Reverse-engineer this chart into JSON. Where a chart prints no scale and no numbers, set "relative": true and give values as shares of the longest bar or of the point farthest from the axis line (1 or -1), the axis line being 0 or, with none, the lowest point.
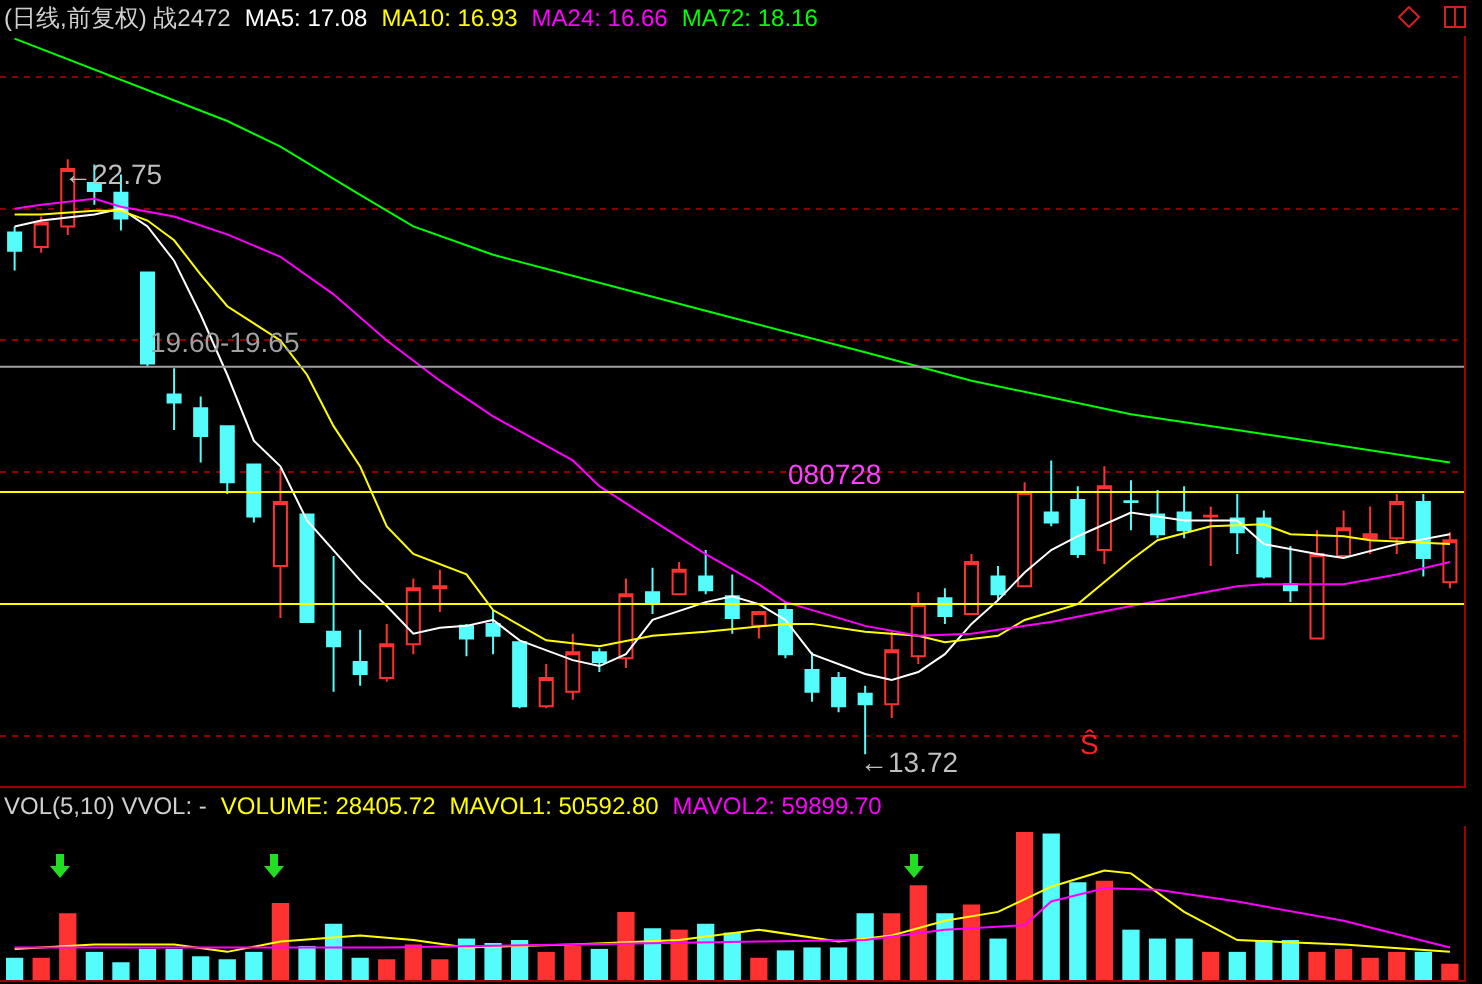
{
  "chart_data": [
    {
      "type": "candlestick",
      "title": "(日线,前复权) 战2472",
      "categories": [
        null,
        null,
        null,
        null,
        null,
        null,
        null,
        null,
        null,
        null,
        null,
        null,
        null,
        null,
        null,
        null,
        null,
        null,
        null,
        null,
        null,
        null,
        null,
        null,
        null,
        null,
        null,
        null,
        null,
        null,
        null,
        null,
        null,
        null,
        null,
        null,
        null,
        null,
        null,
        null,
        null,
        null,
        null,
        null,
        null,
        null,
        null,
        null,
        null,
        null,
        null,
        null,
        null,
        null,
        null
      ],
      "ylim": [
        13.24,
        24.62
      ],
      "yticks": [
        {
          "value": 14,
          "label": null
        },
        {
          "value": 16,
          "label": null
        },
        {
          "value": 18,
          "label": null
        },
        {
          "value": 20,
          "label": null
        },
        {
          "value": 22,
          "label": null
        },
        {
          "value": 24,
          "label": null
        }
      ],
      "grid": "y",
      "ohlc": [
        [
          21.64,
          21.73,
          21.06,
          21.36
        ],
        [
          21.42,
          21.88,
          21.33,
          21.79
        ],
        [
          21.73,
          22.75,
          21.6,
          22.6
        ],
        [
          22.39,
          22.67,
          22.06,
          22.27
        ],
        [
          22.24,
          22.52,
          21.67,
          21.85
        ],
        [
          21.03,
          21.03,
          19.6,
          19.65
        ],
        [
          19.18,
          19.58,
          18.64,
          19.06
        ],
        [
          18.97,
          19.15,
          18.15,
          18.55
        ],
        [
          18.7,
          18.7,
          17.67,
          17.85
        ],
        [
          18.12,
          18.12,
          17.24,
          17.33
        ],
        [
          16.58,
          18.06,
          15.79,
          17.55
        ],
        [
          17.36,
          17.36,
          15.73,
          15.73
        ],
        [
          15.58,
          16.73,
          14.67,
          15.36
        ],
        [
          15.12,
          15.61,
          14.76,
          14.94
        ],
        [
          14.88,
          15.7,
          14.82,
          15.39
        ],
        [
          15.39,
          16.39,
          15.24,
          16.24
        ],
        [
          16.24,
          16.52,
          15.88,
          16.27
        ],
        [
          15.67,
          15.7,
          15.21,
          15.48
        ],
        [
          15.7,
          15.91,
          15.24,
          15.52
        ],
        [
          15.42,
          15.42,
          14.42,
          14.45
        ],
        [
          14.45,
          15.09,
          14.42,
          14.88
        ],
        [
          14.67,
          15.55,
          14.55,
          15.27
        ],
        [
          15.27,
          15.33,
          14.97,
          15.12
        ],
        [
          15.18,
          16.39,
          15.03,
          16.15
        ],
        [
          16.18,
          16.55,
          15.85,
          16.0
        ],
        [
          16.15,
          16.64,
          16.15,
          16.52
        ],
        [
          16.42,
          16.82,
          16.15,
          16.21
        ],
        [
          16.12,
          16.45,
          15.55,
          15.79
        ],
        [
          15.67,
          15.9,
          15.48,
          15.88
        ],
        [
          15.91,
          16.03,
          15.18,
          15.24
        ],
        [
          15.0,
          15.27,
          14.52,
          14.67
        ],
        [
          14.88,
          14.97,
          14.36,
          14.45
        ],
        [
          14.64,
          14.76,
          13.72,
          14.48
        ],
        [
          14.48,
          15.58,
          14.27,
          15.3
        ],
        [
          15.21,
          16.18,
          15.09,
          16.0
        ],
        [
          16.09,
          16.24,
          15.7,
          15.82
        ],
        [
          15.85,
          16.76,
          15.85,
          16.64
        ],
        [
          16.42,
          16.58,
          16.06,
          16.15
        ],
        [
          16.27,
          17.85,
          16.27,
          17.7
        ],
        [
          17.39,
          18.18,
          17.18,
          17.24
        ],
        [
          17.58,
          17.79,
          16.7,
          16.76
        ],
        [
          16.82,
          18.09,
          16.61,
          17.79
        ],
        [
          17.56,
          17.88,
          17.12,
          17.55
        ],
        [
          17.36,
          17.73,
          17.0,
          17.06
        ],
        [
          17.39,
          17.79,
          17.0,
          17.12
        ],
        [
          17.33,
          17.48,
          16.58,
          17.34
        ],
        [
          17.3,
          17.67,
          16.76,
          17.09
        ],
        [
          17.3,
          17.42,
          16.39,
          16.42
        ],
        [
          16.3,
          16.88,
          16.03,
          16.21
        ],
        [
          15.48,
          17.12,
          15.48,
          16.76
        ],
        [
          16.73,
          17.42,
          16.73,
          17.15
        ],
        [
          17.0,
          17.48,
          16.76,
          17.06
        ],
        [
          17.0,
          17.67,
          16.76,
          17.55
        ],
        [
          17.55,
          17.67,
          16.42,
          16.7
        ],
        [
          16.33,
          17.09,
          16.24,
          16.97
        ]
      ],
      "series": [
        {
          "name": "MA5: 17.08",
          "type": "line",
          "color": "#ffffff",
          "values": [
            21.73,
            21.82,
            null,
            21.91,
            22.0,
            21.73,
            21.21,
            20.39,
            19.48,
            18.48,
            18.09,
            17.27,
            null,
            16.36,
            15.97,
            15.55,
            15.64,
            15.67,
            15.76,
            15.45,
            null,
            15.15,
            15.06,
            15.24,
            15.76,
            null,
            16.03,
            16.12,
            16.0,
            15.76,
            15.24,
            null,
            14.94,
            14.85,
            14.97,
            15.24,
            15.7,
            16.06,
            16.48,
            16.82,
            17.03,
            null,
            17.39,
            null,
            17.27,
            null,
            17.27,
            16.91,
            null,
            16.76,
            16.7,
            null,
            16.91,
            null,
            17.06
          ]
        },
        {
          "name": "MA10: 16.93",
          "type": "line",
          "color": "#ffff00",
          "values": [
            21.91,
            21.91,
            null,
            21.97,
            21.97,
            21.82,
            21.52,
            21.0,
            20.52,
            null,
            20.0,
            19.48,
            18.7,
            18.09,
            17.18,
            16.76,
            null,
            16.45,
            15.91,
            null,
            15.45,
            null,
            15.36,
            null,
            15.52,
            null,
            15.58,
            null,
            null,
            15.7,
            15.7,
            null,
            15.58,
            null,
            15.52,
            15.42,
            null,
            15.52,
            15.76,
            null,
            16.0,
            null,
            16.67,
            16.97,
            null,
            17.18,
            null,
            17.21,
            17.06,
            null,
            17.03,
            16.97,
            null,
            null,
            16.91
          ]
        },
        {
          "name": "MA24: 16.66",
          "type": "line",
          "color": "#ff00ff",
          "values": [
            22.0,
            22.06,
            null,
            22.15,
            22.03,
            null,
            21.88,
            null,
            21.61,
            null,
            21.27,
            null,
            20.7,
            null,
            20.0,
            null,
            19.39,
            null,
            18.85,
            null,
            null,
            18.18,
            17.79,
            null,
            17.27,
            null,
            16.76,
            null,
            16.3,
            16.03,
            null,
            null,
            15.67,
            null,
            15.52,
            null,
            15.55,
            null,
            15.67,
            15.73,
            null,
            null,
            15.97,
            null,
            null,
            null,
            16.27,
            16.3,
            null,
            null,
            16.3,
            null,
            16.45,
            null,
            16.64
          ]
        },
        {
          "name": "MA72: 18.16",
          "type": "line",
          "color": "#00ff00",
          "values": [
            24.58,
            null,
            null,
            null,
            null,
            null,
            null,
            null,
            23.33,
            null,
            22.94,
            null,
            null,
            22.21,
            null,
            21.73,
            null,
            null,
            21.3,
            null,
            null,
            null,
            null,
            null,
            null,
            null,
            20.45,
            null,
            null,
            null,
            null,
            null,
            19.82,
            null,
            null,
            null,
            19.39,
            null,
            null,
            null,
            null,
            null,
            18.88,
            null,
            null,
            null,
            null,
            null,
            18.52,
            null,
            null,
            null,
            null,
            null,
            18.15
          ]
        }
      ],
      "ref_lines": [
        {
          "axis": "y",
          "value": 19.6,
          "label": "19.60-19.65",
          "color": "#a0a0a0"
        },
        {
          "axis": "y",
          "value": 17.7,
          "color": "#ffff00"
        },
        {
          "axis": "y",
          "value": 16.0,
          "color": "#ffff00"
        }
      ],
      "annotations": [
        "←22.75",
        "←13.72",
        "080728",
        "Ŝ"
      ]
    },
    {
      "type": "bar",
      "title": "VOL(5,10) VVOL: -",
      "subtitle": "VOLUME: 28405.72",
      "categories": [
        null,
        null,
        null,
        null,
        null,
        null,
        null,
        null,
        null,
        null,
        null,
        null,
        null,
        null,
        null,
        null,
        null,
        null,
        null,
        null,
        null,
        null,
        null,
        null,
        null,
        null,
        null,
        null,
        null,
        null,
        null,
        null,
        null,
        null,
        null,
        null,
        null,
        null,
        null,
        null,
        null,
        null,
        null,
        null,
        null,
        null,
        null,
        null,
        null,
        null,
        null,
        null,
        null,
        null,
        null
      ],
      "relative": true,
      "values": [
        0.15,
        0.15,
        0.45,
        0.19,
        0.12,
        0.21,
        0.21,
        0.16,
        0.14,
        0.19,
        0.52,
        0.23,
        0.38,
        0.15,
        0.14,
        0.24,
        0.14,
        0.28,
        0.25,
        0.27,
        0.19,
        0.23,
        0.21,
        0.46,
        0.35,
        0.34,
        0.38,
        0.32,
        0.15,
        0.2,
        0.22,
        0.22,
        0.45,
        0.45,
        0.64,
        0.45,
        0.51,
        0.28,
        1,
        0.99,
        0.66,
        0.67,
        0.34,
        0.28,
        0.28,
        0.19,
        0.19,
        0.27,
        0.27,
        0.19,
        0.21,
        0.15,
        0.19,
        0.19,
        0.11
      ],
      "colors": [
        "#54fcfc",
        "#ff3232",
        "#ff3232",
        "#54fcfc",
        "#54fcfc",
        "#54fcfc",
        "#54fcfc",
        "#54fcfc",
        "#54fcfc",
        "#54fcfc",
        "#ff3232",
        "#54fcfc",
        "#54fcfc",
        "#54fcfc",
        "#ff3232",
        "#ff3232",
        "#ff3232",
        "#54fcfc",
        "#54fcfc",
        "#54fcfc",
        "#ff3232",
        "#ff3232",
        "#54fcfc",
        "#ff3232",
        "#54fcfc",
        "#ff3232",
        "#54fcfc",
        "#54fcfc",
        "#ff3232",
        "#54fcfc",
        "#54fcfc",
        "#54fcfc",
        "#54fcfc",
        "#ff3232",
        "#ff3232",
        "#54fcfc",
        "#ff3232",
        "#54fcfc",
        "#ff3232",
        "#54fcfc",
        "#54fcfc",
        "#ff3232",
        "#54fcfc",
        "#54fcfc",
        "#54fcfc",
        "#ff3232",
        "#54fcfc",
        "#54fcfc",
        "#54fcfc",
        "#ff3232",
        "#ff3232",
        "#ff3232",
        "#ff3232",
        "#54fcfc",
        "#ff3232"
      ],
      "series": [
        {
          "name": "MAVOL1: 50592.80",
          "type": "line",
          "color": "#ffff00",
          "values": [
            0.21,
            null,
            null,
            0.24,
            null,
            null,
            0.24,
            null,
            0.19,
            null,
            0.26,
            null,
            null,
            0.3,
            null,
            0.27,
            null,
            0.22,
            null,
            null,
            null,
            0.24,
            null,
            null,
            null,
            0.27,
            null,
            null,
            0.34,
            null,
            null,
            0.26,
            null,
            0.3,
            null,
            0.4,
            null,
            0.46,
            null,
            0.63,
            null,
            0.74,
            0.72,
            null,
            0.46,
            null,
            0.27,
            null,
            null,
            null,
            0.24,
            null,
            null,
            null,
            0.19
          ]
        },
        {
          "name": "MAVOL2: 59899.70",
          "type": "line",
          "color": "#ff00ff",
          "values": [
            0.22,
            null,
            null,
            null,
            null,
            null,
            null,
            0.22,
            null,
            null,
            null,
            null,
            null,
            null,
            0.22,
            null,
            null,
            null,
            null,
            null,
            null,
            0.24,
            null,
            null,
            null,
            null,
            null,
            null,
            0.26,
            null,
            null,
            null,
            0.27,
            null,
            null,
            0.34,
            null,
            null,
            0.37,
            0.53,
            null,
            0.62,
            null,
            0.61,
            null,
            null,
            0.53,
            null,
            null,
            null,
            0.4,
            null,
            null,
            null,
            0.22
          ]
        }
      ]
    }
  ]
}
